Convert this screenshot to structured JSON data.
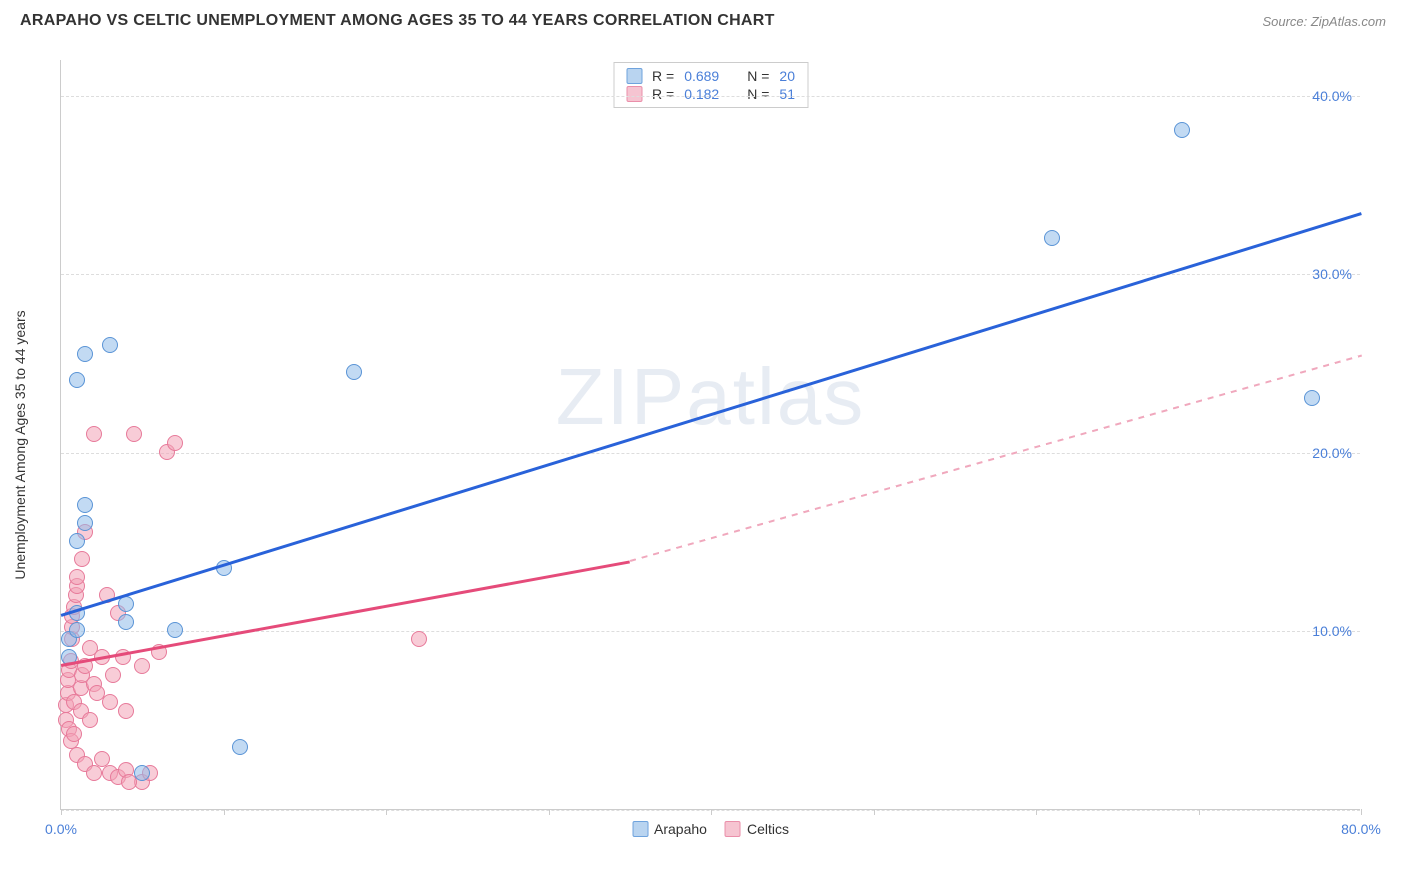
{
  "header": {
    "title": "ARAPAHO VS CELTIC UNEMPLOYMENT AMONG AGES 35 TO 44 YEARS CORRELATION CHART",
    "source_prefix": "Source: ",
    "source_name": "ZipAtlas.com"
  },
  "y_axis": {
    "label": "Unemployment Among Ages 35 to 44 years"
  },
  "chart": {
    "type": "scatter",
    "xlim": [
      0,
      80
    ],
    "ylim": [
      0,
      42
    ],
    "x_ticks": [
      0,
      10,
      20,
      30,
      40,
      50,
      60,
      70,
      80
    ],
    "x_tick_labels": {
      "0": "0.0%",
      "80": "80.0%"
    },
    "y_gridlines": [
      0,
      10,
      20,
      30,
      40
    ],
    "y_tick_labels": {
      "10": "10.0%",
      "20": "20.0%",
      "30": "30.0%",
      "40": "40.0%"
    },
    "background_color": "#ffffff",
    "grid_color": "#dddddd",
    "axis_color": "#cccccc",
    "tick_label_color": "#4a7fd8",
    "watermark": "ZIPatlas"
  },
  "series": {
    "arapaho": {
      "label": "Arapaho",
      "color_fill": "rgba(143,187,234,0.55)",
      "color_stroke": "#5a94d6",
      "swatch_fill": "#b9d4f0",
      "swatch_stroke": "#6fa3dd",
      "marker_radius": 8,
      "R": "0.689",
      "N": "20",
      "trend": {
        "x1": 0,
        "y1": 11.0,
        "x2": 80,
        "y2": 33.5,
        "color": "#2962d9",
        "width": 2.5,
        "dash": "none"
      },
      "points": [
        {
          "x": 0.5,
          "y": 8.5
        },
        {
          "x": 0.5,
          "y": 9.5
        },
        {
          "x": 1,
          "y": 10
        },
        {
          "x": 1,
          "y": 11
        },
        {
          "x": 1,
          "y": 15
        },
        {
          "x": 1.5,
          "y": 16
        },
        {
          "x": 1.5,
          "y": 17
        },
        {
          "x": 1,
          "y": 24
        },
        {
          "x": 1.5,
          "y": 25.5
        },
        {
          "x": 3,
          "y": 26
        },
        {
          "x": 4,
          "y": 10.5
        },
        {
          "x": 4,
          "y": 11.5
        },
        {
          "x": 5,
          "y": 2
        },
        {
          "x": 7,
          "y": 10
        },
        {
          "x": 10,
          "y": 13.5
        },
        {
          "x": 11,
          "y": 3.5
        },
        {
          "x": 18,
          "y": 24.5
        },
        {
          "x": 61,
          "y": 32
        },
        {
          "x": 69,
          "y": 38
        },
        {
          "x": 77,
          "y": 23
        }
      ]
    },
    "celtics": {
      "label": "Celtics",
      "color_fill": "rgba(243,163,183,0.55)",
      "color_stroke": "#e77a9a",
      "swatch_fill": "#f6c4d1",
      "swatch_stroke": "#ea8faa",
      "marker_radius": 8,
      "R": "0.182",
      "N": "51",
      "trend_solid": {
        "x1": 0,
        "y1": 8.2,
        "x2": 35,
        "y2": 14.0,
        "color": "#e54b7a",
        "width": 2.5
      },
      "trend_dash": {
        "x1": 35,
        "y1": 14.0,
        "x2": 80,
        "y2": 25.5,
        "color": "#f0a8bd",
        "width": 1.5
      },
      "points": [
        {
          "x": 0.3,
          "y": 5
        },
        {
          "x": 0.3,
          "y": 5.8
        },
        {
          "x": 0.4,
          "y": 6.5
        },
        {
          "x": 0.4,
          "y": 7.2
        },
        {
          "x": 0.5,
          "y": 7.8
        },
        {
          "x": 0.5,
          "y": 4.5
        },
        {
          "x": 0.6,
          "y": 8.3
        },
        {
          "x": 0.6,
          "y": 3.8
        },
        {
          "x": 0.7,
          "y": 9.5
        },
        {
          "x": 0.7,
          "y": 10.2
        },
        {
          "x": 0.7,
          "y": 10.8
        },
        {
          "x": 0.8,
          "y": 4.2
        },
        {
          "x": 0.8,
          "y": 11.3
        },
        {
          "x": 0.8,
          "y": 6
        },
        {
          "x": 0.9,
          "y": 12
        },
        {
          "x": 1,
          "y": 12.5
        },
        {
          "x": 1,
          "y": 13
        },
        {
          "x": 1,
          "y": 3
        },
        {
          "x": 1.2,
          "y": 5.5
        },
        {
          "x": 1.2,
          "y": 6.8
        },
        {
          "x": 1.3,
          "y": 7.5
        },
        {
          "x": 1.3,
          "y": 14
        },
        {
          "x": 1.5,
          "y": 2.5
        },
        {
          "x": 1.5,
          "y": 8
        },
        {
          "x": 1.5,
          "y": 15.5
        },
        {
          "x": 1.8,
          "y": 5
        },
        {
          "x": 1.8,
          "y": 9
        },
        {
          "x": 2,
          "y": 21
        },
        {
          "x": 2,
          "y": 2
        },
        {
          "x": 2,
          "y": 7
        },
        {
          "x": 2.2,
          "y": 6.5
        },
        {
          "x": 2.5,
          "y": 2.8
        },
        {
          "x": 2.5,
          "y": 8.5
        },
        {
          "x": 2.8,
          "y": 12
        },
        {
          "x": 3,
          "y": 2
        },
        {
          "x": 3,
          "y": 6
        },
        {
          "x": 3.2,
          "y": 7.5
        },
        {
          "x": 3.5,
          "y": 11
        },
        {
          "x": 3.5,
          "y": 1.8
        },
        {
          "x": 3.8,
          "y": 8.5
        },
        {
          "x": 4,
          "y": 2.2
        },
        {
          "x": 4,
          "y": 5.5
        },
        {
          "x": 4.5,
          "y": 21
        },
        {
          "x": 5,
          "y": 1.5
        },
        {
          "x": 5,
          "y": 8
        },
        {
          "x": 5.5,
          "y": 2
        },
        {
          "x": 6,
          "y": 8.8
        },
        {
          "x": 6.5,
          "y": 20
        },
        {
          "x": 7,
          "y": 20.5
        },
        {
          "x": 22,
          "y": 9.5
        },
        {
          "x": 4.2,
          "y": 1.5
        }
      ]
    }
  },
  "stats_legend": {
    "r_label": "R =",
    "n_label": "N ="
  }
}
